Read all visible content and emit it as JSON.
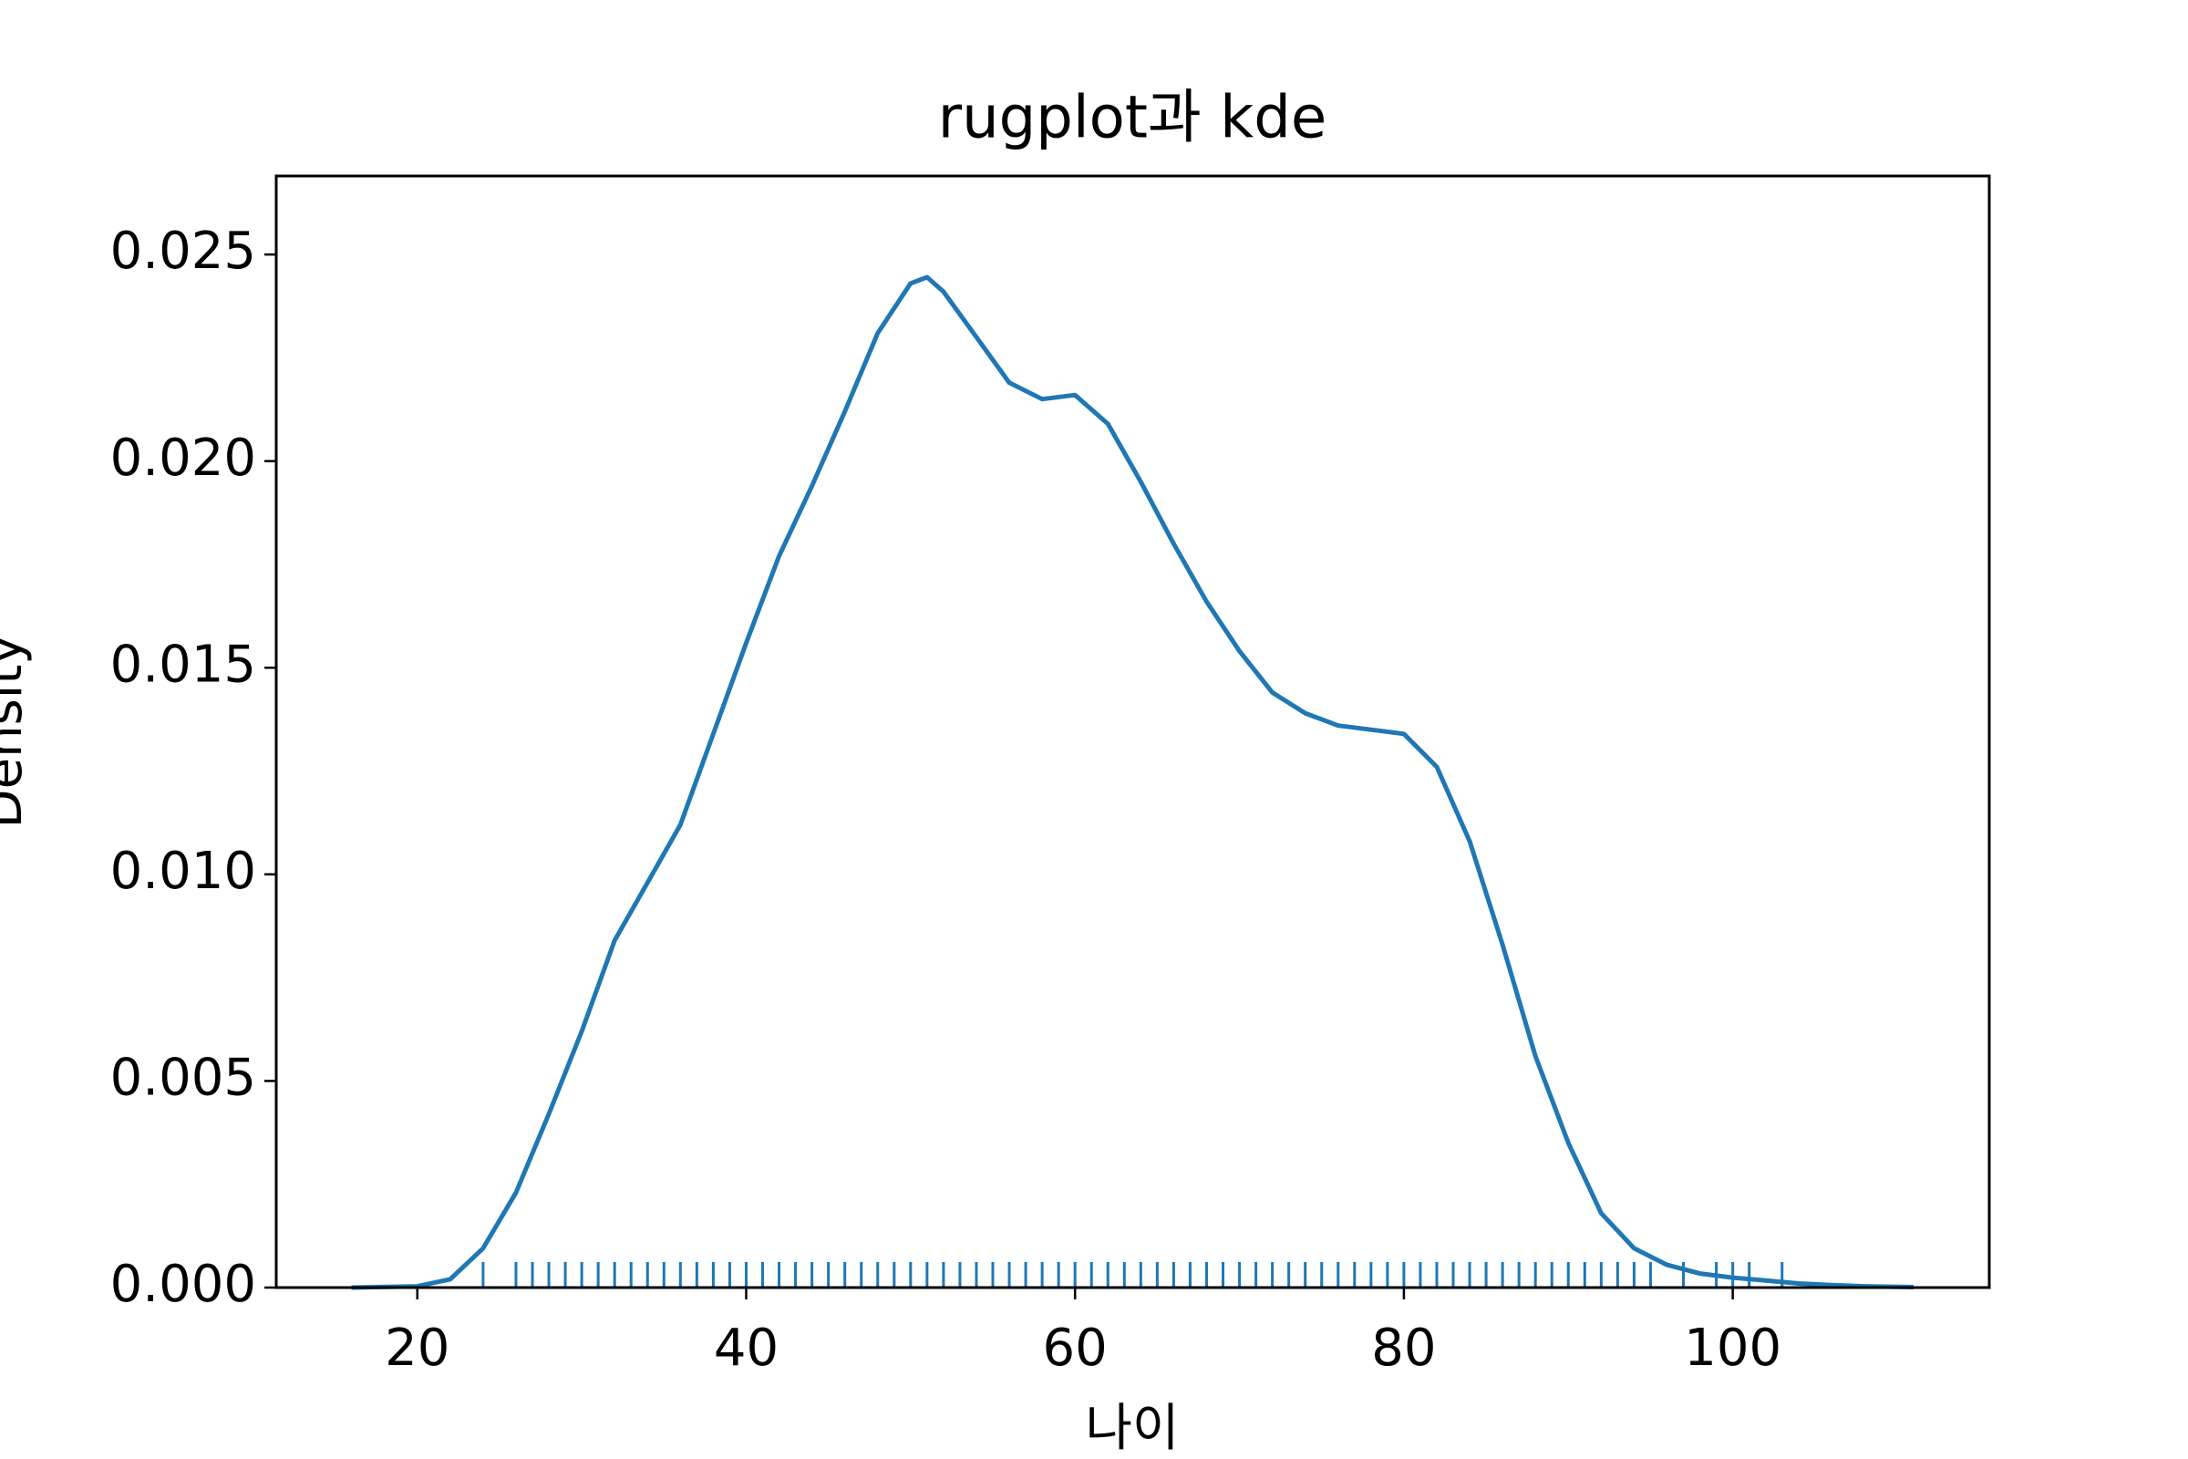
{
  "chart_data": {
    "type": "kde",
    "title": "rugplot과 kde",
    "xlabel": "나이",
    "ylabel": "Density",
    "color": "#1f77b4",
    "x": [
      16,
      20,
      22,
      24,
      26,
      28,
      30,
      32,
      34,
      36,
      38,
      40,
      42,
      44,
      46,
      48,
      50,
      51,
      52,
      54,
      56,
      58,
      60,
      62,
      64,
      66,
      68,
      70,
      72,
      74,
      76,
      78,
      80,
      82,
      84,
      86,
      88,
      90,
      92,
      94,
      96,
      98,
      100,
      102,
      104,
      106,
      108,
      111
    ],
    "values": [
      0,
      3e-05,
      0.0002,
      0.00095,
      0.0023,
      0.0042,
      0.0062,
      0.0084,
      0.0098,
      0.0112,
      0.0134,
      0.0156,
      0.0177,
      0.0194,
      0.0212,
      0.0231,
      0.0243,
      0.02445,
      0.0241,
      0.023,
      0.0219,
      0.0215,
      0.0216,
      0.0209,
      0.0195,
      0.018,
      0.0166,
      0.0154,
      0.0144,
      0.0139,
      0.0136,
      0.0135,
      0.0134,
      0.0126,
      0.0108,
      0.0083,
      0.0056,
      0.0035,
      0.0018,
      0.00095,
      0.00055,
      0.00034,
      0.00024,
      0.00017,
      0.0001,
      6e-05,
      3e-05,
      1e-05
    ],
    "rug": [
      24,
      26,
      27,
      28,
      29,
      30,
      31,
      32,
      33,
      34,
      35,
      36,
      37,
      38,
      39,
      40,
      41,
      42,
      43,
      44,
      45,
      46,
      47,
      48,
      49,
      50,
      51,
      52,
      53,
      54,
      55,
      56,
      57,
      58,
      59,
      60,
      61,
      62,
      63,
      64,
      65,
      66,
      67,
      68,
      69,
      70,
      71,
      72,
      73,
      74,
      75,
      76,
      77,
      78,
      79,
      80,
      81,
      82,
      83,
      84,
      85,
      86,
      87,
      88,
      89,
      90,
      91,
      92,
      93,
      94,
      95,
      97,
      99,
      100,
      101,
      103
    ],
    "xlim": [
      11.42,
      115.6
    ],
    "ylim": [
      0,
      0.0269
    ],
    "xticks": [
      20,
      40,
      60,
      80,
      100
    ],
    "yticks": [
      {
        "value": 0,
        "label": "0.000"
      },
      0.005,
      {
        "value": 0.01,
        "label": "0.010"
      },
      0.015,
      {
        "value": 0.02,
        "label": "0.020"
      },
      0.025
    ]
  }
}
